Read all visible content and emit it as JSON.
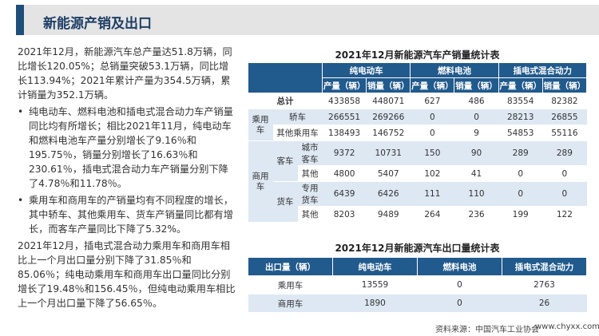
{
  "header": {
    "title": "新能源产销及出口"
  },
  "summary": {
    "paragraphs": [
      {
        "text": "2021年12月，新能源汽车总产量达51.8万辆，同比增长120.05%；总销量突破53.1万辆，同比增长113.94%；2021年累计产量为354.5万辆，累计销量为352.1万辆。",
        "bullet": false
      },
      {
        "text": "纯电动车、燃料电池和插电式混合动力车产销量同比均有所增长；相比2021年11月，纯电动车和燃料电池车产量分别增长了9.16％和195.75％，销量分别增长了16.63％和230.61％，插电式混合动力车产销量分别下降了4.78％和11.78％。",
        "bullet": true
      },
      {
        "text": "乘用车和商用车的产销量均有不同程度的增长，其中轿车、其他乘用车、货车产销量同比都有增长，而客车产量同比下降了5.32%。",
        "bullet": true
      },
      {
        "text": "2021年12月，插电式混合动力乘用车和商用车相比上一个月出口量分别下降了31.85％和85.06％；纯电动乘用车和商用车出口量同比分别增长了19.48％和156.45％，但纯电动乘用车相比上一个月出口量下降了56.65％。",
        "bullet": false
      }
    ]
  },
  "production_table": {
    "title": "2021年12月新能源汽车产销量统计表",
    "header_groups": [
      "纯电动车",
      "燃料电池",
      "插电式混合动力"
    ],
    "subheaders": [
      "产量（辆）",
      "销量（辆）",
      "产量（辆）",
      "销量（辆）",
      "产量（辆）",
      "销量（辆）"
    ],
    "total": {
      "label": "总计",
      "values": [
        433858,
        448071,
        627,
        486,
        83554,
        82382
      ]
    },
    "passenger": {
      "label": "乘用车",
      "rows": [
        {
          "label": "轿车",
          "values": [
            266551,
            269266,
            0,
            0,
            28213,
            26855
          ]
        },
        {
          "label": "其他乘用车",
          "values": [
            138493,
            146752,
            0,
            9,
            54853,
            55116
          ]
        }
      ]
    },
    "commercial": {
      "label": "商用车",
      "subgroups": [
        {
          "label": "客车",
          "rows": [
            {
              "label": "城市客车",
              "values": [
                9372,
                10731,
                150,
                90,
                289,
                289
              ]
            },
            {
              "label": "其他",
              "values": [
                4800,
                5407,
                102,
                41,
                0,
                0
              ]
            }
          ]
        },
        {
          "label": "货车",
          "rows": [
            {
              "label": "专用货车",
              "values": [
                6439,
                6426,
                111,
                110,
                0,
                0
              ]
            },
            {
              "label": "其他",
              "values": [
                8203,
                9489,
                264,
                236,
                199,
                122
              ]
            }
          ]
        }
      ]
    }
  },
  "export_table": {
    "title": "2021年12月新能源汽车出口量统计表",
    "header": [
      "出口量（辆）",
      "纯电动车",
      "燃料电池",
      "插电式混合动力"
    ],
    "rows": [
      {
        "label": "乘用车",
        "values": [
          13559,
          0,
          2763
        ]
      },
      {
        "label": "商用车",
        "values": [
          1890,
          0,
          26
        ]
      }
    ]
  },
  "footer": {
    "source": "资料来源：中国汽车工业协会",
    "site": "www.chyxx.com"
  }
}
